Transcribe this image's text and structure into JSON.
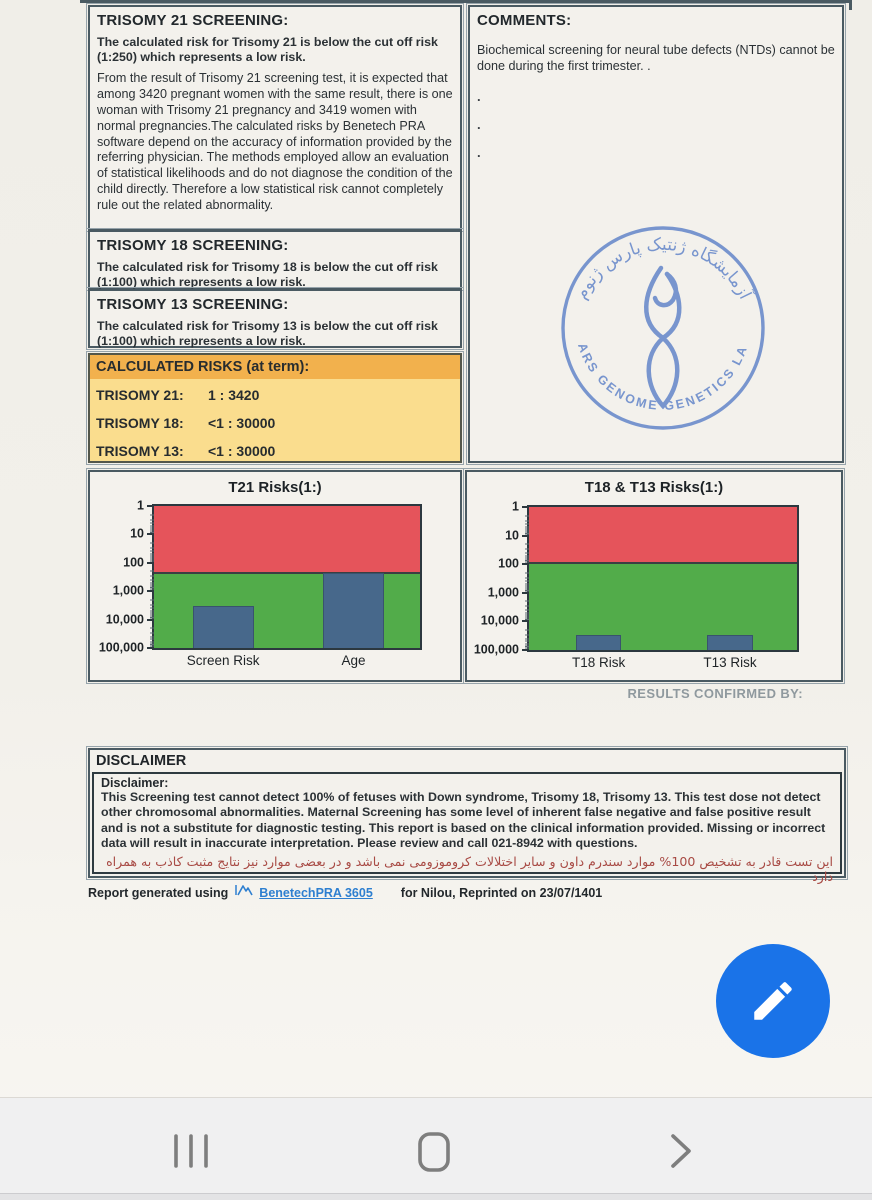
{
  "report": {
    "t21": {
      "title": "TRISOMY 21 SCREENING:",
      "summary": "The calculated risk for Trisomy 21 is below the cut off risk (1:250) which represents a low risk.",
      "body": "From the result of Trisomy 21 screening test, it is expected that among 3420 pregnant women with the same result, there is one woman with Trisomy 21 pregnancy and 3419 women with normal pregnancies.The calculated risks by Benetech PRA software depend on the accuracy of information provided by the referring physician. The methods employed allow an evaluation of statistical likelihoods and do not diagnose the condition of the child directly. Therefore a low statistical risk cannot completely rule out the related abnormality."
    },
    "t18": {
      "title": "TRISOMY 18 SCREENING:",
      "summary": "The calculated risk for Trisomy 18 is below the cut off risk (1:100) which represents a low risk."
    },
    "t13": {
      "title": "TRISOMY 13 SCREENING:",
      "summary": "The calculated risk for Trisomy 13 is below the cut off risk (1:100) which represents a low risk."
    },
    "comments": {
      "title": "COMMENTS:",
      "body": "Biochemical screening for neural tube defects (NTDs) cannot be done during the first trimester. .",
      "dots": [
        ".",
        ".",
        "."
      ]
    },
    "calculated_risks": {
      "title": "CALCULATED RISKS (at term):",
      "rows": [
        {
          "label": "TRISOMY 21:",
          "value": "1 : 3420"
        },
        {
          "label": "TRISOMY 18:",
          "value": "<1 : 30000"
        },
        {
          "label": "TRISOMY 13:",
          "value": "<1 : 30000"
        }
      ]
    },
    "stamp": {
      "top_text": "آزمایشگاه ژنتیک پارس ژنوم",
      "bottom_text": "PARS GENOME GENETICS LAB",
      "color": "#5e82c8"
    },
    "results_confirmed_label": "RESULTS CONFIRMED BY:",
    "disclaimer": {
      "box_title": "DISCLAIMER",
      "heading": "Disclaimer:",
      "body_en": "This Screening test cannot detect 100% of fetuses with Down syndrome, Trisomy 18, Trisomy 13. This test dose not detect other chromosomal abnormalities. Maternal Screening has some level of inherent false negative and false positive result and is not a substitute for diagnostic testing. This report is based on the clinical information provided. Missing or incorrect data will result in inaccurate interpretation. Please review and call 021-8942 with questions.",
      "body_fa": "این تست قادر به تشخیص 100% موارد سندرم داون و سایر اختلالات کروموزومی نمی باشد و در بعضی موارد نیز نتایج مثبت کاذب به همراه دارد"
    },
    "footer": {
      "prefix": "Report generated using",
      "software_link": "BenetechPRA 3605",
      "suffix": "for Nilou, Reprinted on 23/07/1401"
    }
  },
  "fab": {
    "icon": "pencil-edit-icon",
    "color": "#1a73e8"
  },
  "navbar": {
    "recents_icon": "recents-icon",
    "home_icon": "home-icon",
    "back_icon": "back-icon"
  },
  "chart_data": [
    {
      "type": "bar",
      "title": "T21 Risks(1:)",
      "categories": [
        "Screen Risk",
        "Age"
      ],
      "values": [
        3420,
        230
      ],
      "cutoff_risk": 250,
      "yticks": [
        1,
        10,
        100,
        1000,
        10000,
        100000
      ],
      "ytick_labels": [
        "1",
        "10",
        "100",
        "1,000",
        "10,000",
        "100,000"
      ],
      "ylim": [
        1,
        100000
      ],
      "y_axis": "inverted log scale, 1 (highest risk) at top",
      "xlabel": "",
      "ylabel": "",
      "legend": "none",
      "zones": {
        "high_risk_color": "#e5545b",
        "low_risk_color": "#52ac4a"
      },
      "bar_color": "#47688b",
      "layout": {
        "bar_centers": [
          0.26,
          0.75
        ],
        "bar_width": 0.23
      }
    },
    {
      "type": "bar",
      "title": "T18 & T13 Risks(1:)",
      "categories": [
        "T18 Risk",
        "T13 Risk"
      ],
      "values": [
        30000,
        30000
      ],
      "cutoff_risk": 100,
      "yticks": [
        1,
        10,
        100,
        1000,
        10000,
        100000
      ],
      "ytick_labels": [
        "1",
        "10",
        "100",
        "1,000",
        "10,000",
        "100,000"
      ],
      "ylim": [
        1,
        100000
      ],
      "y_axis": "inverted log scale, 1 (highest risk) at top",
      "xlabel": "",
      "ylabel": "",
      "legend": "none",
      "zones": {
        "high_risk_color": "#e5545b",
        "low_risk_color": "#52ac4a"
      },
      "bar_color": "#47688b",
      "layout": {
        "bar_centers": [
          0.26,
          0.75
        ],
        "bar_width": 0.17
      }
    }
  ]
}
